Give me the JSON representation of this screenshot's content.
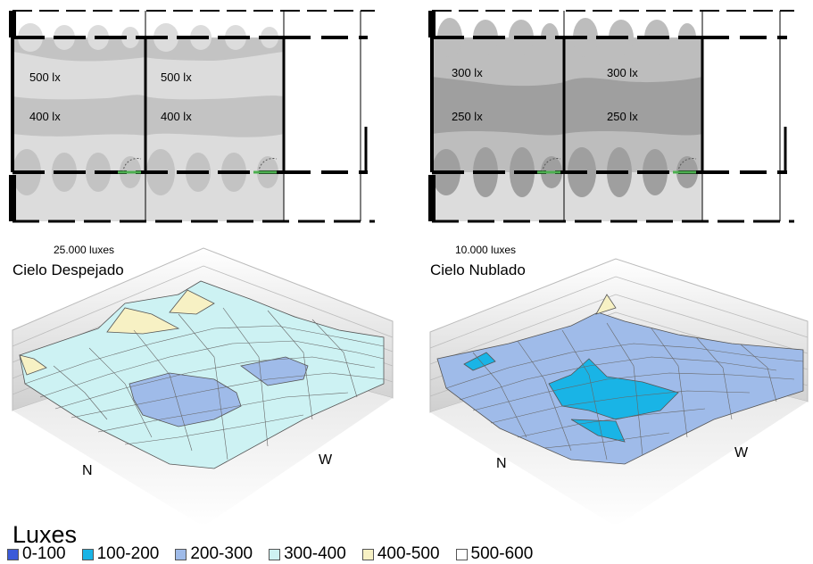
{
  "plans": [
    {
      "labels": [
        {
          "room": "left",
          "text": "500 lx"
        },
        {
          "room": "right",
          "text": "500 lx"
        },
        {
          "room": "left",
          "text": "400 lx"
        },
        {
          "room": "right",
          "text": "400 lx"
        }
      ]
    },
    {
      "labels": [
        {
          "room": "left",
          "text": "300 lx"
        },
        {
          "room": "right",
          "text": "300 lx"
        },
        {
          "room": "left",
          "text": "250 lx"
        },
        {
          "room": "right",
          "text": "250 lx"
        }
      ]
    }
  ],
  "surfaces": [
    {
      "luxes": "25.000 luxes",
      "sky": "Cielo Despejado",
      "axis_n": "N",
      "axis_w": "W",
      "dominant_range": "300-400"
    },
    {
      "luxes": "10.000 luxes",
      "sky": "Cielo Nublado",
      "axis_n": "N",
      "axis_w": "W",
      "dominant_range": "200-300"
    }
  ],
  "legend": {
    "title": "Luxes",
    "items": [
      {
        "label": "0-100",
        "color": "#3b5bd9"
      },
      {
        "label": "100-200",
        "color": "#19b4e6"
      },
      {
        "label": "200-300",
        "color": "#9fbbe9"
      },
      {
        "label": "300-400",
        "color": "#cdf2f3"
      },
      {
        "label": "400-500",
        "color": "#f7f1c4"
      },
      {
        "label": "500-600",
        "color": "#ffffff"
      }
    ]
  },
  "colors": {
    "plan_light": "#dcdcdc",
    "plan_dark_clear": "#c3c3c3",
    "plan_dark_cloudy": "#9f9f9f",
    "plan_mid_cloudy": "#bdbdbd"
  }
}
